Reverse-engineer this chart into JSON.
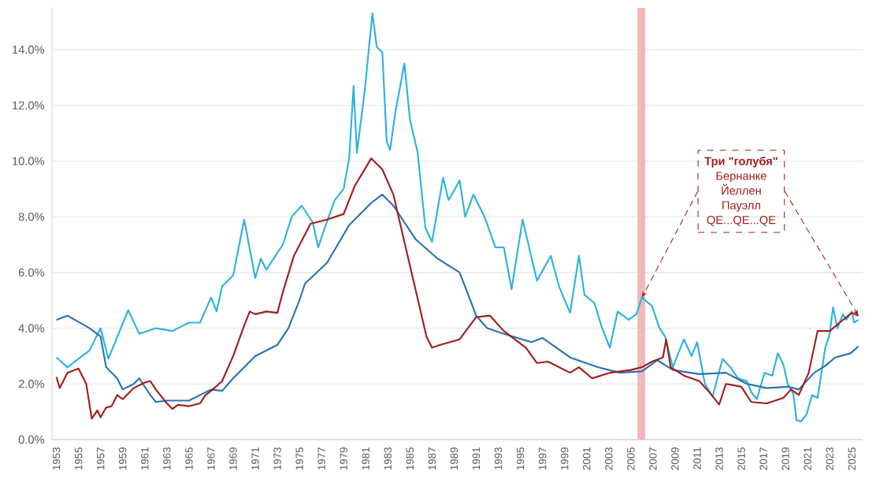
{
  "chart_data": {
    "type": "line",
    "xlim": [
      1952.6,
      2026
    ],
    "xticks": [
      1953,
      1955,
      1957,
      1959,
      1961,
      1963,
      1965,
      1967,
      1969,
      1971,
      1973,
      1975,
      1977,
      1979,
      1981,
      1983,
      1985,
      1987,
      1989,
      1991,
      1993,
      1995,
      1997,
      1999,
      2001,
      2003,
      2005,
      2007,
      2009,
      2011,
      2013,
      2015,
      2017,
      2019,
      2021,
      2023,
      2025
    ],
    "ylim": [
      0,
      15.5
    ],
    "yticks": [
      {
        "value": 0,
        "label": "0.0%"
      },
      {
        "value": 2,
        "label": "2.0%"
      },
      {
        "value": 4,
        "label": "4.0%"
      },
      {
        "value": 6,
        "label": "6.0%"
      },
      {
        "value": 8,
        "label": "8.0%"
      },
      {
        "value": 10,
        "label": "10.0%"
      },
      {
        "value": 12,
        "label": "12.0%"
      },
      {
        "value": 14,
        "label": "14.0%"
      }
    ],
    "grid": "y",
    "marker": "none",
    "line_style": "solid",
    "series": [
      {
        "color": "#2bb3e0",
        "x": [
          1953,
          1954,
          1955,
          1956,
          1957,
          1957.7,
          1959.5,
          1960.5,
          1962,
          1963.5,
          1965,
          1966,
          1967,
          1967.5,
          1968,
          1969,
          1970,
          1971,
          1971.5,
          1972,
          1973.5,
          1974.3,
          1975.2,
          1976.2,
          1976.7,
          1977.2,
          1978.2,
          1979,
          1979.5,
          1979.9,
          1980.2,
          1980.9,
          1981.6,
          1982,
          1982.5,
          1982.9,
          1983.2,
          1983.7,
          1984.5,
          1985,
          1985.7,
          1986.4,
          1987,
          1988,
          1988.5,
          1989.5,
          1990,
          1990.75,
          1991.75,
          1992.75,
          1993.5,
          1994.2,
          1995.2,
          1996.5,
          1997.75,
          1998.5,
          1999.5,
          2000.3,
          2000.8,
          2001.7,
          2002.4,
          2003.1,
          2003.8,
          2004.8,
          2005.5,
          2006,
          2006.9,
          2007.6,
          2008.1,
          2008.8,
          2009.8,
          2010.5,
          2011,
          2011.7,
          2012.4,
          2013.3,
          2014,
          2014.7,
          2015.5,
          2015.9,
          2016.4,
          2017.1,
          2017.8,
          2018.3,
          2018.8,
          2019.2,
          2019.7,
          2020,
          2020.4,
          2020.9,
          2021.4,
          2021.9,
          2022.1,
          2022.6,
          2023,
          2023.3,
          2023.7,
          2024.2,
          2024.5,
          2025,
          2025.2,
          2025.6
        ],
        "values": [
          2.95,
          2.6,
          2.9,
          3.2,
          4.0,
          2.9,
          4.65,
          3.8,
          4.0,
          3.9,
          4.2,
          4.2,
          5.1,
          4.6,
          5.5,
          5.9,
          7.9,
          5.8,
          6.5,
          6.1,
          7.0,
          8.0,
          8.4,
          7.8,
          6.9,
          7.5,
          8.6,
          9.0,
          10.1,
          12.7,
          10.3,
          12.5,
          15.3,
          14.1,
          13.9,
          10.7,
          10.4,
          11.8,
          13.5,
          11.5,
          10.3,
          7.6,
          7.1,
          9.4,
          8.6,
          9.3,
          8.0,
          8.8,
          8.0,
          6.9,
          6.9,
          5.4,
          7.9,
          5.7,
          6.6,
          5.5,
          4.55,
          6.6,
          5.2,
          4.9,
          4.0,
          3.3,
          4.6,
          4.3,
          4.5,
          5.1,
          4.8,
          4.0,
          3.7,
          2.6,
          3.6,
          3.0,
          3.5,
          2.0,
          1.55,
          2.9,
          2.6,
          2.2,
          2.1,
          1.7,
          1.45,
          2.4,
          2.3,
          3.1,
          2.7,
          2.0,
          1.65,
          0.7,
          0.65,
          0.9,
          1.6,
          1.5,
          2.0,
          3.3,
          3.8,
          4.75,
          4.0,
          4.5,
          4.3,
          4.6,
          4.2,
          4.3
        ]
      },
      {
        "color": "#2a72b5",
        "x": [
          1953,
          1954,
          1956,
          1957,
          1957.5,
          1958.5,
          1959,
          1960,
          1960.5,
          1961.5,
          1962,
          1963,
          1965,
          1966,
          1967,
          1968,
          1969,
          1971,
          1973,
          1974,
          1975,
          1975.5,
          1977.5,
          1979.5,
          1981.5,
          1982.5,
          1983.5,
          1985.5,
          1987.5,
          1989.5,
          1991,
          1992,
          1993.5,
          1996,
          1997,
          1999.5,
          2002,
          2004,
          2006,
          2007.4,
          2008.8,
          2011.2,
          2013.6,
          2015.5,
          2017.3,
          2019.2,
          2020.2,
          2021.6,
          2022.6,
          2023.5,
          2024.9,
          2025.6
        ],
        "values": [
          4.3,
          4.45,
          4.0,
          3.7,
          2.6,
          2.2,
          1.8,
          2.0,
          2.2,
          1.6,
          1.35,
          1.4,
          1.4,
          1.6,
          1.8,
          1.75,
          2.2,
          3.0,
          3.4,
          4.0,
          5.0,
          5.6,
          6.35,
          7.7,
          8.5,
          8.8,
          8.4,
          7.2,
          6.5,
          6.0,
          4.45,
          4.0,
          3.8,
          3.5,
          3.65,
          2.95,
          2.6,
          2.4,
          2.45,
          2.85,
          2.5,
          2.35,
          2.4,
          2.0,
          1.85,
          1.9,
          1.8,
          2.4,
          2.65,
          2.95,
          3.1,
          3.35
        ]
      },
      {
        "color": "#a51c1c",
        "x": [
          1953,
          1953.3,
          1954,
          1955,
          1955.7,
          1956.2,
          1956.7,
          1957,
          1957.5,
          1958,
          1958.5,
          1959,
          1960,
          1961,
          1961.5,
          1962,
          1963,
          1963.5,
          1964,
          1965,
          1966,
          1966.5,
          1967,
          1968,
          1969,
          1970,
          1970.5,
          1971,
          1972,
          1973,
          1973.5,
          1974.5,
          1976,
          1977.5,
          1979,
          1980,
          1981.5,
          1982.5,
          1983.5,
          1984.5,
          1985.5,
          1986.5,
          1987,
          1987.75,
          1989.5,
          1991,
          1992.25,
          1993.5,
          1995.5,
          1996.5,
          1997.5,
          1999.5,
          2000.3,
          2001.5,
          2003.1,
          2005,
          2006,
          2006.9,
          2007.9,
          2008.2,
          2008.6,
          2009.8,
          2011.2,
          2012.1,
          2013,
          2013.6,
          2015,
          2015.9,
          2017.3,
          2018.8,
          2019.5,
          2020.2,
          2021.1,
          2021.9,
          2023,
          2023.9,
          2025,
          2025.6
        ],
        "values": [
          2.25,
          1.85,
          2.4,
          2.55,
          2.0,
          0.75,
          1.05,
          0.8,
          1.15,
          1.2,
          1.6,
          1.45,
          1.85,
          2.05,
          2.1,
          1.8,
          1.3,
          1.1,
          1.25,
          1.2,
          1.3,
          1.6,
          1.75,
          2.1,
          3.0,
          4.1,
          4.6,
          4.5,
          4.6,
          4.55,
          5.3,
          6.6,
          7.75,
          7.9,
          8.1,
          9.1,
          10.1,
          9.7,
          8.8,
          7.1,
          5.4,
          3.7,
          3.3,
          3.4,
          3.6,
          4.4,
          4.45,
          3.9,
          3.3,
          2.75,
          2.8,
          2.4,
          2.6,
          2.2,
          2.4,
          2.5,
          2.6,
          2.8,
          2.95,
          3.6,
          2.6,
          2.3,
          2.1,
          1.7,
          1.26,
          2.0,
          1.9,
          1.35,
          1.3,
          1.5,
          1.8,
          1.6,
          2.4,
          3.9,
          3.9,
          4.2,
          4.55,
          4.45
        ]
      }
    ],
    "bands": [
      {
        "axis": "x",
        "from": 2005.6,
        "to": 2006.3,
        "color": "#f0b8b8"
      }
    ],
    "annotations": [
      "Три \"голубя\"",
      "Бернанке",
      "Йеллен",
      "Пауэлл",
      "QE...QE...QE"
    ]
  }
}
